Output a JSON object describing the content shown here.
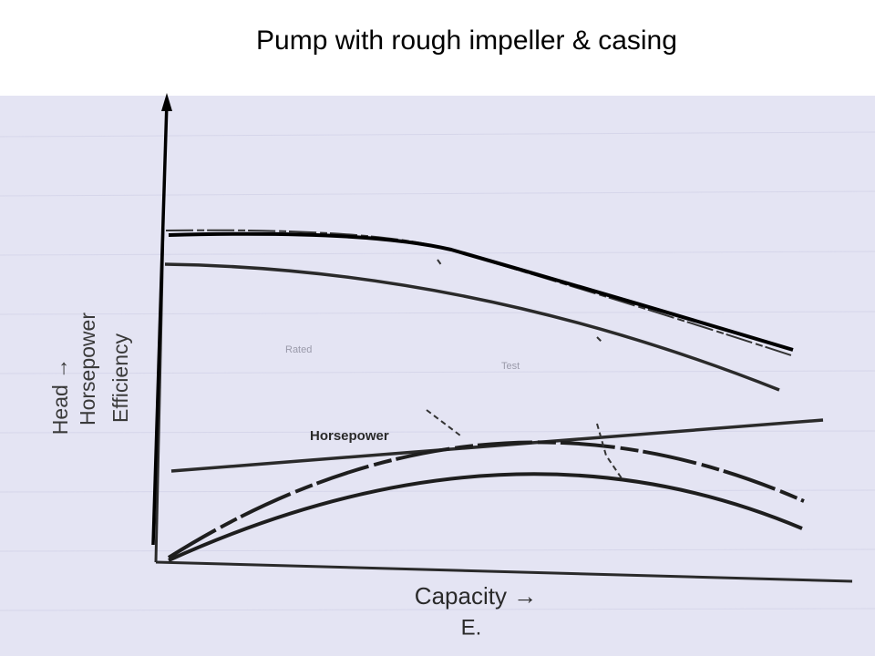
{
  "title": "Pump with rough impeller & casing",
  "axis_labels": {
    "y": [
      "Head →",
      "Horsepower",
      "Efficiency"
    ],
    "x": "Capacity →"
  },
  "curve_label": "Horsepower",
  "annotations": [
    "Rated",
    "Test"
  ],
  "figure_label": "E."
}
